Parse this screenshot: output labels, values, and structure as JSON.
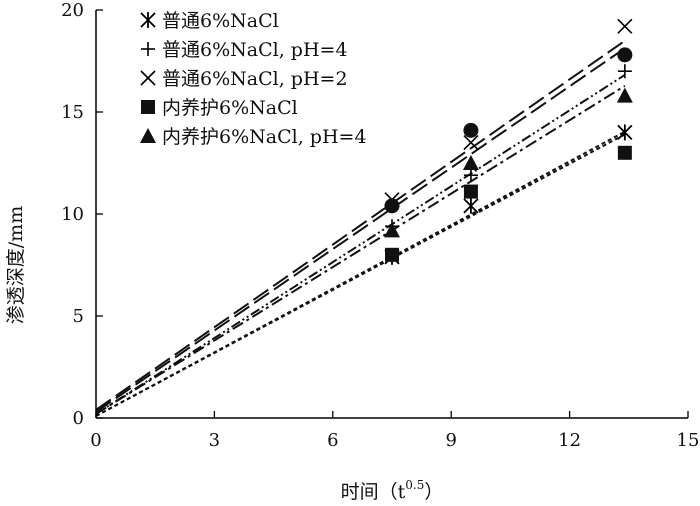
{
  "chart_data": {
    "type": "scatter",
    "xlabel": "时间（t",
    "xlabel_sup": "0.5",
    "xlabel_close": "）",
    "ylabel": "渗透深度/mm",
    "xlim": [
      0,
      15
    ],
    "ylim": [
      0,
      20
    ],
    "xticks": [
      "0",
      "3",
      "6",
      "9",
      "12",
      "15"
    ],
    "yticks": [
      "0",
      "5",
      "10",
      "15",
      "20"
    ],
    "grid": false,
    "legend_position": "top-left",
    "x": [
      7.5,
      9.5,
      13.4
    ],
    "series": [
      {
        "name": "普通6%NaCl",
        "marker": "asterisk",
        "values": [
          7.9,
          10.4,
          14.0
        ],
        "fit": {
          "intercept": 0.1,
          "slope": 1.04
        },
        "line_style": "dashed-fine"
      },
      {
        "name": "普通6%NaCl, pH=4",
        "marker": "plus",
        "values": [
          9.4,
          11.9,
          17.0
        ],
        "fit": {
          "intercept": 0.2,
          "slope": 1.24
        },
        "line_style": "dash-dot-dot"
      },
      {
        "name": "普通6%NaCl, pH=2",
        "marker": "x",
        "values": [
          10.7,
          13.5,
          19.2
        ],
        "fit": {
          "intercept": 0.4,
          "slope": 1.35
        },
        "line_style": "long-dash"
      },
      {
        "name": "内养护6%NaCl",
        "marker": "square",
        "values": [
          8.0,
          11.1,
          13.0
        ],
        "fit": {
          "intercept": 0.1,
          "slope": 1.03
        },
        "line_style": "dashed-fine"
      },
      {
        "name": "内养护6%NaCl, pH=4",
        "marker": "triangle",
        "values": [
          9.2,
          12.5,
          15.8
        ],
        "fit": {
          "intercept": 0.2,
          "slope": 1.2
        },
        "line_style": "dash-dot"
      },
      {
        "name": "",
        "marker": "circle",
        "values": [
          10.4,
          14.1,
          17.8
        ],
        "fit": {
          "intercept": 0.3,
          "slope": 1.33
        },
        "line_style": "long-dash"
      }
    ]
  }
}
